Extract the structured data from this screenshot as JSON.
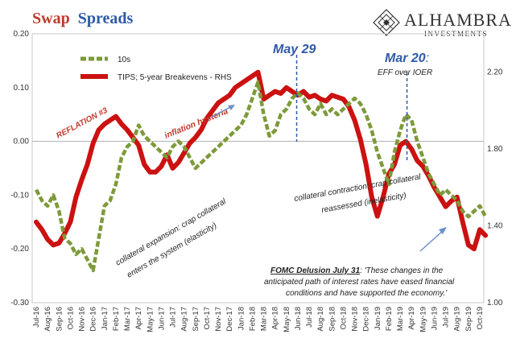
{
  "header": {
    "title_part1": "Swap",
    "title_part2": "Spreads",
    "logo_name": "ALHAMBRA",
    "logo_sub": "INVESTMENTS",
    "logo_icon": "diamond-lattice-icon"
  },
  "colors": {
    "swap_10s": "#7d9a3a",
    "tips_breakevens": "#cc1111",
    "title_red": "#c0392b",
    "title_blue": "#2e5aa8",
    "event_line": "#2e5aa8",
    "arrow": "#6b8fc8"
  },
  "chart_data": {
    "type": "line",
    "title": "Swap Spreads",
    "x_tick_labels": [
      "Jul-16",
      "Aug-16",
      "Sep-16",
      "Oct-16",
      "Nov-16",
      "Dec-16",
      "Jan-17",
      "Feb-17",
      "Mar-17",
      "Apr-17",
      "May-17",
      "Jun-17",
      "Jul-17",
      "Aug-17",
      "Sep-17",
      "Oct-17",
      "Nov-17",
      "Dec-17",
      "Jan-18",
      "Feb-18",
      "Mar-18",
      "Apr-18",
      "May-18",
      "Jun-18",
      "Jul-18",
      "Aug-18",
      "Sep-18",
      "Oct-18",
      "Nov-18",
      "Dec-18",
      "Jan-19",
      "Feb-19",
      "Mar-19",
      "Apr-19",
      "May-19",
      "Jun-19",
      "Jul-19",
      "Aug-19",
      "Sep-19",
      "Oct-19"
    ],
    "y_left": {
      "ylim": [
        -0.3,
        0.2
      ],
      "ticks": [
        "0.20",
        "0.10",
        "0.00",
        "-0.10",
        "-0.20",
        "-0.30"
      ]
    },
    "y_right": {
      "ylim": [
        1.0,
        2.4
      ],
      "ticks": [
        "2.20",
        "1.80",
        "1.40",
        "1.00"
      ]
    },
    "legend_placement": "top-left",
    "series": [
      {
        "name": "10s",
        "axis": "left",
        "style": "dashed",
        "x": [
          0,
          0.5,
          1,
          1.5,
          2,
          2.5,
          3,
          3.5,
          4,
          4.5,
          5,
          5.5,
          6,
          6.5,
          7,
          7.5,
          8,
          8.5,
          9,
          9.5,
          10,
          10.5,
          11,
          11.5,
          12,
          12.5,
          13,
          13.5,
          14,
          14.5,
          15,
          15.5,
          16,
          16.5,
          17,
          17.5,
          18,
          18.5,
          19,
          19.5,
          20,
          20.5,
          21,
          21.5,
          22,
          22.5,
          23,
          23.5,
          24,
          24.5,
          25,
          25.5,
          26,
          26.5,
          27,
          27.5,
          28,
          28.5,
          29,
          29.5,
          30,
          30.5,
          31,
          31.5,
          32,
          32.5,
          33,
          33.5,
          34,
          34.5,
          35,
          35.5,
          36,
          36.5,
          37,
          37.5,
          38,
          38.5,
          39,
          39.5
        ],
        "values": [
          -0.09,
          -0.11,
          -0.12,
          -0.1,
          -0.13,
          -0.18,
          -0.19,
          -0.21,
          -0.2,
          -0.22,
          -0.24,
          -0.18,
          -0.12,
          -0.11,
          -0.08,
          -0.03,
          -0.01,
          0.0,
          0.03,
          0.01,
          0.0,
          -0.01,
          -0.02,
          -0.03,
          -0.01,
          0.0,
          -0.01,
          -0.03,
          -0.05,
          -0.04,
          -0.03,
          -0.02,
          -0.01,
          0.0,
          0.01,
          0.02,
          0.03,
          0.05,
          0.08,
          0.11,
          0.05,
          0.01,
          0.02,
          0.05,
          0.06,
          0.08,
          0.09,
          0.08,
          0.06,
          0.05,
          0.07,
          0.05,
          0.06,
          0.05,
          0.06,
          0.07,
          0.08,
          0.07,
          0.05,
          0.02,
          -0.02,
          -0.05,
          -0.08,
          -0.02,
          0.02,
          0.05,
          0.04,
          0.0,
          -0.03,
          -0.06,
          -0.08,
          -0.1,
          -0.09,
          -0.1,
          -0.11,
          -0.13,
          -0.14,
          -0.13,
          -0.12,
          -0.14
        ]
      },
      {
        "name": "TIPS; 5-year Breakevens - RHS",
        "axis": "right",
        "style": "solid",
        "x": [
          0,
          0.5,
          1,
          1.5,
          2,
          2.5,
          3,
          3.5,
          4,
          4.5,
          5,
          5.5,
          6,
          6.5,
          7,
          7.5,
          8,
          8.5,
          9,
          9.5,
          10,
          10.5,
          11,
          11.5,
          12,
          12.5,
          13,
          13.5,
          14,
          14.5,
          15,
          15.5,
          16,
          16.5,
          17,
          17.5,
          18,
          18.5,
          19,
          19.5,
          20,
          20.5,
          21,
          21.5,
          22,
          22.5,
          23,
          23.5,
          24,
          24.5,
          25,
          25.5,
          26,
          26.5,
          27,
          27.5,
          28,
          28.5,
          29,
          29.5,
          30,
          30.5,
          31,
          31.5,
          32,
          32.5,
          33,
          33.5,
          34,
          34.5,
          35,
          35.5,
          36,
          36.5,
          37,
          37.5,
          38,
          38.5,
          39,
          39.5
        ],
        "values": [
          1.42,
          1.38,
          1.33,
          1.3,
          1.31,
          1.36,
          1.42,
          1.55,
          1.64,
          1.72,
          1.83,
          1.9,
          1.93,
          1.95,
          1.97,
          1.93,
          1.9,
          1.86,
          1.82,
          1.72,
          1.68,
          1.68,
          1.71,
          1.77,
          1.7,
          1.73,
          1.78,
          1.83,
          1.86,
          1.9,
          1.96,
          2.0,
          2.04,
          2.06,
          2.08,
          2.12,
          2.14,
          2.16,
          2.18,
          2.2,
          2.06,
          2.08,
          2.1,
          2.09,
          2.12,
          2.1,
          2.08,
          2.1,
          2.07,
          2.08,
          2.06,
          2.05,
          2.08,
          2.07,
          2.06,
          2.02,
          1.95,
          1.85,
          1.72,
          1.55,
          1.45,
          1.55,
          1.67,
          1.72,
          1.82,
          1.84,
          1.8,
          1.74,
          1.71,
          1.66,
          1.6,
          1.55,
          1.5,
          1.53,
          1.55,
          1.42,
          1.3,
          1.28,
          1.38,
          1.35
        ]
      }
    ],
    "event_markers": [
      {
        "label": "May 29",
        "x": 22.9
      },
      {
        "label": "Mar 20",
        "x": 32.6,
        "sublabel": "EFF over IOER"
      }
    ]
  },
  "annotations": {
    "legend_10s": "10s",
    "legend_tips": "TIPS; 5-year Breakevens - RHS",
    "reflation": "REFLATION #3",
    "inflation_hysteria": "inflation hysteria",
    "may29": "May 29",
    "mar20": "Mar 20",
    "mar20_colon": ":",
    "eff_ioer": "EFF over IOER",
    "collateral_expansion_1": "collateral expansion: crap collateral",
    "collateral_expansion_2": "enters the system (elasticity)",
    "collateral_contraction_1": "collateral contraction: crap collateral",
    "collateral_contraction_2": "reassessed (inelasticity)",
    "fomc_bold": "FOMC Delusion July 31",
    "fomc_quote_1": ": 'These changes in the",
    "fomc_quote_2": "anticipated path of interest rates have eased financial",
    "fomc_quote_3": "conditions and have supported the economy.'"
  }
}
